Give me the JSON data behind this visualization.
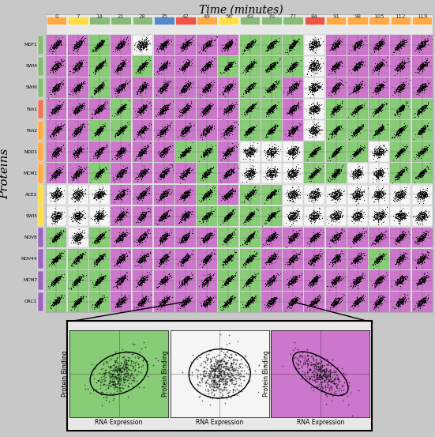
{
  "title": "Time (minutes)",
  "ylabel": "Proteins",
  "time_points": [
    0,
    7,
    14,
    21,
    28,
    35,
    42,
    49,
    56,
    63,
    70,
    77,
    84,
    91,
    98,
    105,
    112,
    119
  ],
  "proteins": [
    "MDF1",
    "SWI4",
    "SWI6",
    "Fkh1",
    "Fkh2",
    "NDD1",
    "MCM1",
    "ACE2",
    "SWI5",
    "NOV8",
    "NOV44",
    "MCM7",
    "ORC1"
  ],
  "protein_colors": [
    "#88bb77",
    "#88bb77",
    "#88bb77",
    "#ee7755",
    "#ffaa44",
    "#ffaa44",
    "#ffaa44",
    "#ffdd44",
    "#ffdd44",
    "#9966bb",
    "#9966bb",
    "#9966bb",
    "#9966bb"
  ],
  "time_colors": [
    "#ffaa44",
    "#ffdd44",
    "#88bb77",
    "#88bb77",
    "#88bb77",
    "#5588cc",
    "#ee5544",
    "#ffaa44",
    "#ffdd44",
    "#88bb77",
    "#88bb77",
    "#88bb77",
    "#ee5544",
    "#ffaa44",
    "#ffaa44",
    "#ffaa44",
    "#ffaa44",
    "#ffaa44"
  ],
  "cell_green": "#88cc77",
  "cell_purple": "#cc77cc",
  "cell_white": "#f5f5f5",
  "background": "#c8c8c8",
  "inset_colors": [
    "#88cc77",
    "#f5f5f5",
    "#cc77cc"
  ],
  "grid_bg": "#e8e8e8"
}
